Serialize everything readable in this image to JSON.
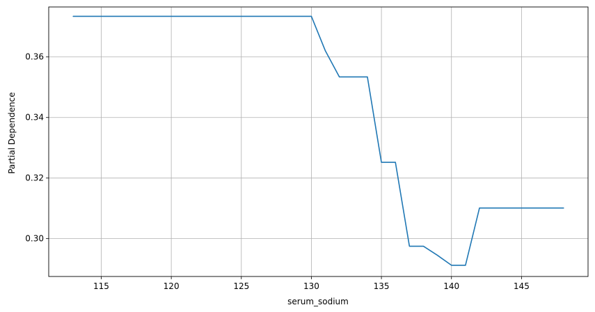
{
  "chart_data": {
    "type": "line",
    "title": "",
    "xlabel": "serum_sodium",
    "ylabel": "Partial Dependence",
    "xlim": [
      111.25,
      149.75
    ],
    "ylim": [
      0.2875,
      0.3765
    ],
    "xticks": [
      115,
      120,
      125,
      130,
      135,
      140,
      145
    ],
    "xtick_labels": [
      "115",
      "120",
      "125",
      "130",
      "135",
      "140",
      "145"
    ],
    "yticks": [
      0.3,
      0.32,
      0.34,
      0.36
    ],
    "ytick_labels": [
      "0.30",
      "0.32",
      "0.34",
      "0.36"
    ],
    "grid": true,
    "legend": "none",
    "series": [
      {
        "color": "#1f77b4",
        "x": [
          113,
          130,
          131,
          132,
          133,
          134,
          135,
          136,
          137,
          138,
          139,
          140,
          141,
          142,
          143,
          148
        ],
        "y": [
          0.3734,
          0.3734,
          0.362,
          0.3534,
          0.3534,
          0.3534,
          0.3252,
          0.3252,
          0.2975,
          0.2975,
          0.2945,
          0.2912,
          0.2912,
          0.3101,
          0.3101,
          0.3101
        ]
      }
    ]
  },
  "colors": {
    "line": "#1f77b4",
    "grid": "#b0b0b0",
    "axes": "#000000",
    "background": "#ffffff"
  }
}
